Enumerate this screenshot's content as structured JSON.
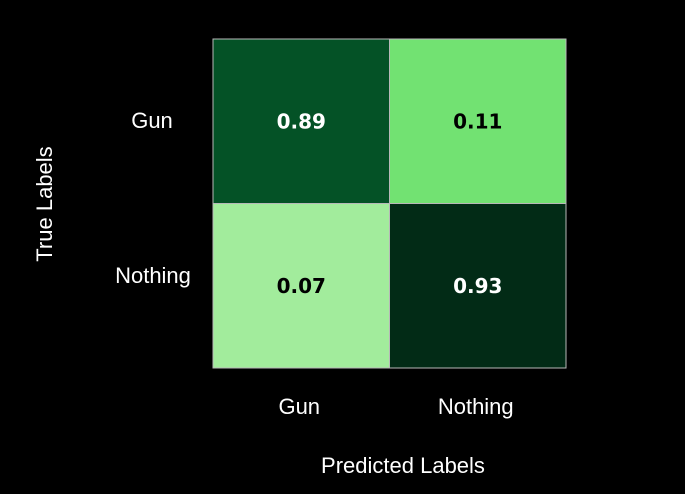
{
  "chart_data": {
    "type": "heatmap",
    "title": "",
    "xlabel": "Predicted Labels",
    "ylabel": "True Labels",
    "x_categories": [
      "Gun",
      "Nothing"
    ],
    "y_categories": [
      "Gun",
      "Nothing"
    ],
    "values": [
      [
        0.89,
        0.11
      ],
      [
        0.07,
        0.93
      ]
    ],
    "value_labels": [
      [
        "0.89",
        "0.11"
      ],
      [
        "0.07",
        "0.93"
      ]
    ],
    "cell_colors": [
      [
        "#045226",
        "#72e272"
      ],
      [
        "#a2ec9c",
        "#022b16"
      ]
    ],
    "value_text_colors": [
      [
        "#ffffff",
        "#000000"
      ],
      [
        "#000000",
        "#ffffff"
      ]
    ],
    "grid": false,
    "colorbar": false
  },
  "colors": {
    "background": "#000000",
    "text": "#ffffff",
    "cell_border": "#b8b8b8"
  }
}
